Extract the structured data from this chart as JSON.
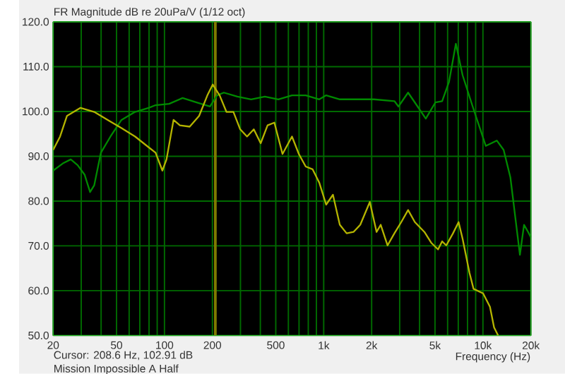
{
  "chart_data": {
    "type": "line",
    "title": "FR Magnitude dB re 20uPa/V (1/12 oct)",
    "xlabel": "Frequency (Hz)",
    "annotations": [
      "Cursor: 208.6 Hz, 102.91 dB",
      "Mission Impossible A Half"
    ],
    "log": "x",
    "grid": true,
    "line_style": "solid",
    "marker": "none",
    "xlim": [
      20,
      20000
    ],
    "ylim": [
      50,
      120
    ],
    "xticks": [
      20,
      {
        "value": 30,
        "label": null
      },
      {
        "value": 40,
        "label": null
      },
      50,
      {
        "value": 60,
        "label": null
      },
      {
        "value": 70,
        "label": null
      },
      {
        "value": 80,
        "label": null
      },
      {
        "value": 90,
        "label": null
      },
      100,
      200,
      {
        "value": 300,
        "label": null
      },
      {
        "value": 400,
        "label": null
      },
      500,
      {
        "value": 600,
        "label": null
      },
      {
        "value": 700,
        "label": null
      },
      {
        "value": 800,
        "label": null
      },
      {
        "value": 900,
        "label": null
      },
      {
        "value": 1000,
        "label": "1k"
      },
      {
        "value": 2000,
        "label": "2k"
      },
      {
        "value": 3000,
        "label": null
      },
      {
        "value": 4000,
        "label": null
      },
      {
        "value": 5000,
        "label": "5k"
      },
      {
        "value": 6000,
        "label": null
      },
      {
        "value": 7000,
        "label": null
      },
      {
        "value": 8000,
        "label": null
      },
      {
        "value": 9000,
        "label": null
      },
      {
        "value": 10000,
        "label": "10k"
      },
      {
        "value": 20000,
        "label": "20k"
      }
    ],
    "yticks": [
      {
        "value": 50,
        "label": "50.0"
      },
      {
        "value": 60,
        "label": "60.0"
      },
      {
        "value": 70,
        "label": "70.0"
      },
      {
        "value": 80,
        "label": "80.0"
      },
      {
        "value": 90,
        "label": "90.0"
      },
      {
        "value": 100,
        "label": "100.0"
      },
      {
        "value": 110,
        "label": "110.0"
      },
      {
        "value": 120,
        "label": "120.0"
      }
    ],
    "ref_lines": [
      {
        "axis": "x",
        "value": 208.6,
        "color": "#807a00"
      }
    ],
    "series": [
      {
        "color": "#008a00",
        "x": [
          20,
          23,
          25.8,
          28.5,
          31.5,
          34.1,
          36.2,
          39.9,
          45.8,
          53.7,
          65.4,
          79.6,
          87.9,
          107,
          130,
          159,
          193,
          214,
          236,
          287,
          350,
          427,
          519,
          632,
          771,
          938,
          1036,
          1262,
          2066,
          2780,
          2950,
          3388,
          3737,
          4376,
          5024,
          5544,
          6124,
          6761,
          7450,
          8730,
          10426,
          12220,
          13490,
          14870,
          17070,
          18120,
          19220,
          20000
        ],
        "values": [
          86.8,
          88.4,
          89.3,
          88.0,
          85.9,
          82.0,
          83.5,
          90.8,
          94.4,
          98.1,
          99.9,
          100.8,
          101.4,
          101.7,
          103.0,
          102.0,
          101.1,
          103.6,
          104.2,
          103.3,
          102.7,
          103.3,
          102.7,
          103.6,
          103.6,
          102.7,
          103.6,
          102.7,
          102.7,
          102.3,
          101.1,
          104.2,
          102.0,
          98.4,
          102.0,
          102.3,
          106.6,
          115.1,
          108.1,
          100.5,
          92.3,
          93.5,
          91.4,
          85.3,
          68.0,
          74.7,
          73.1,
          71.9
        ]
      },
      {
        "color": "#b4b400",
        "x": [
          20,
          22.1,
          24.4,
          29.7,
          36.2,
          44,
          53.7,
          65.4,
          79.6,
          87.9,
          97,
          103,
          114,
          125,
          144,
          165,
          186,
          201,
          222,
          245,
          271,
          299,
          330,
          364,
          402,
          444,
          490,
          551,
          632,
          698,
          771,
          851,
          938,
          1036,
          1143,
          1262,
          1393,
          1538,
          1697,
          1948,
          2148,
          2280,
          2518,
          2780,
          3069,
          3388,
          3737,
          4290,
          4732,
          5224,
          5544,
          5886,
          6488,
          7034,
          7450,
          8229,
          8730,
          10024,
          11068,
          11746,
          12460
        ],
        "values": [
          91.4,
          94.4,
          99.0,
          100.8,
          99.9,
          98.1,
          96.3,
          94.4,
          92.0,
          90.8,
          86.8,
          89.3,
          98.1,
          96.9,
          96.6,
          99.0,
          103.6,
          106.0,
          103.6,
          99.9,
          99.9,
          96.0,
          94.4,
          96.0,
          92.9,
          96.9,
          97.5,
          90.5,
          94.4,
          90.5,
          87.7,
          87.1,
          84.1,
          79.2,
          81.4,
          74.7,
          72.8,
          73.1,
          74.7,
          79.8,
          73.1,
          74.7,
          70.1,
          72.8,
          75.3,
          78.0,
          75.3,
          73.1,
          70.7,
          69.2,
          71.0,
          70.1,
          72.8,
          75.3,
          71.6,
          64.0,
          60.4,
          59.4,
          56.4,
          51.8,
          50.0
        ]
      }
    ]
  }
}
